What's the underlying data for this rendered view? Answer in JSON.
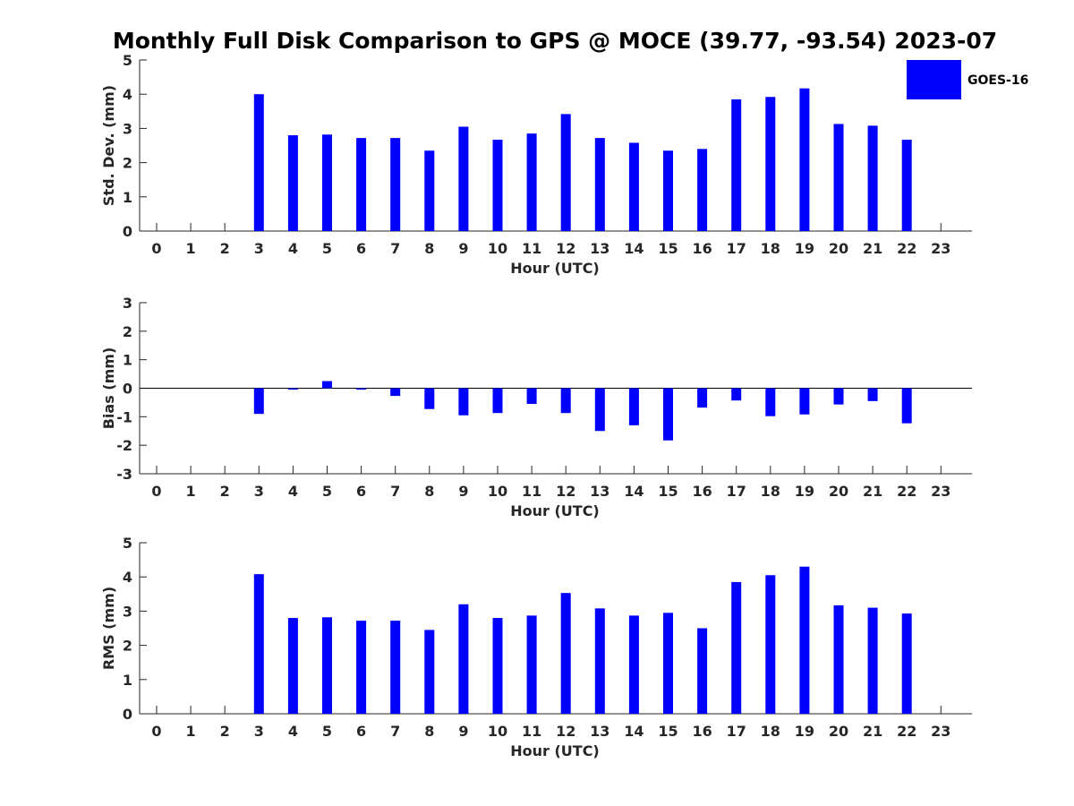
{
  "title": "Monthly Full Disk Comparison to GPS @ MOCE (39.77, -93.54) 2023-07",
  "legend": {
    "label": "GOES-16",
    "color": "#0000ff"
  },
  "chart_data": [
    {
      "type": "bar",
      "id": "std",
      "ylabel": "Std. Dev. (mm)",
      "xlabel": "Hour (UTC)",
      "ylim": [
        0,
        5
      ],
      "yticks": [
        0,
        1,
        2,
        3,
        4,
        5
      ],
      "categories": [
        0,
        1,
        2,
        3,
        4,
        5,
        6,
        7,
        8,
        9,
        10,
        11,
        12,
        13,
        14,
        15,
        16,
        17,
        18,
        19,
        20,
        21,
        22,
        23
      ],
      "series": [
        {
          "name": "GOES-16",
          "color": "#0000ff",
          "values": [
            null,
            null,
            null,
            4.0,
            2.8,
            2.82,
            2.72,
            2.72,
            2.35,
            3.05,
            2.67,
            2.85,
            3.42,
            2.72,
            2.58,
            2.35,
            2.4,
            3.85,
            3.92,
            4.17,
            3.13,
            3.08,
            2.67,
            null
          ]
        }
      ]
    },
    {
      "type": "bar",
      "id": "bias",
      "ylabel": "Bias (mm)",
      "xlabel": "Hour (UTC)",
      "ylim": [
        -3,
        3
      ],
      "yticks": [
        -3,
        -2,
        -1,
        0,
        1,
        2,
        3
      ],
      "zero_line": true,
      "categories": [
        0,
        1,
        2,
        3,
        4,
        5,
        6,
        7,
        8,
        9,
        10,
        11,
        12,
        13,
        14,
        15,
        16,
        17,
        18,
        19,
        20,
        21,
        22,
        23
      ],
      "series": [
        {
          "name": "GOES-16",
          "color": "#0000ff",
          "values": [
            null,
            null,
            null,
            -0.9,
            -0.05,
            0.25,
            -0.05,
            -0.27,
            -0.73,
            -0.95,
            -0.87,
            -0.55,
            -0.87,
            -1.5,
            -1.3,
            -1.83,
            -0.68,
            -0.43,
            -0.98,
            -0.92,
            -0.57,
            -0.45,
            -1.23,
            null
          ]
        }
      ]
    },
    {
      "type": "bar",
      "id": "rms",
      "ylabel": "RMS (mm)",
      "xlabel": "Hour (UTC)",
      "ylim": [
        0,
        5
      ],
      "yticks": [
        0,
        1,
        2,
        3,
        4,
        5
      ],
      "categories": [
        0,
        1,
        2,
        3,
        4,
        5,
        6,
        7,
        8,
        9,
        10,
        11,
        12,
        13,
        14,
        15,
        16,
        17,
        18,
        19,
        20,
        21,
        22,
        23
      ],
      "series": [
        {
          "name": "GOES-16",
          "color": "#0000ff",
          "values": [
            null,
            null,
            null,
            4.08,
            2.8,
            2.82,
            2.72,
            2.72,
            2.45,
            3.2,
            2.8,
            2.87,
            3.53,
            3.08,
            2.87,
            2.95,
            2.5,
            3.85,
            4.05,
            4.3,
            3.17,
            3.1,
            2.93,
            null
          ]
        }
      ]
    }
  ]
}
